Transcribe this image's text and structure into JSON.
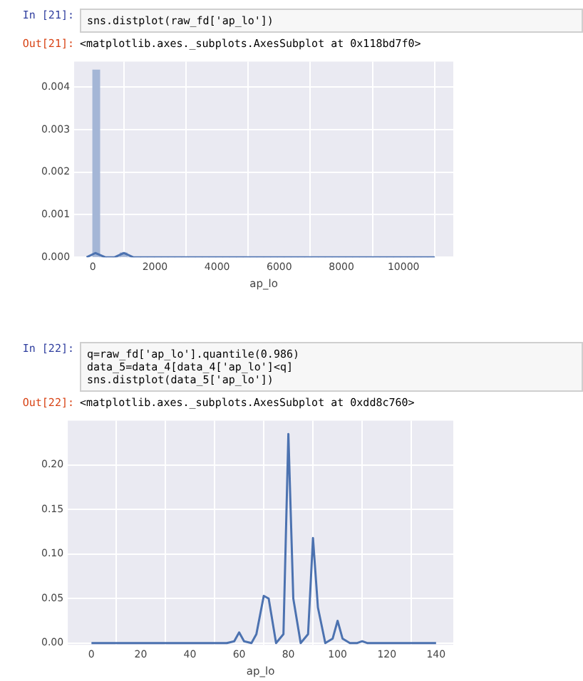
{
  "chart_data": [
    {
      "type": "histogram",
      "xlabel": "ap_lo",
      "annotations": [
        "In [21]:",
        "sns.distplot(raw_fd['ap_lo'])",
        "Out[21]:",
        "<matplotlib.axes._subplots.AxesSubplot at 0x118bd7f0>"
      ],
      "bins": [
        0,
        220,
        440,
        660,
        880,
        1100,
        1320,
        1540,
        1760,
        1980,
        2200,
        2420,
        2640,
        2860,
        3080,
        3300,
        3520,
        3740,
        3960,
        4180,
        4400,
        4620,
        4840,
        5060,
        5280,
        5500,
        5720,
        5940,
        6160,
        6380,
        6600,
        6820,
        7040,
        7260,
        7480,
        7700,
        7920,
        8140,
        8360,
        8580,
        8800,
        9020,
        9240,
        9460,
        9680,
        9900,
        10120,
        10340,
        10560,
        10780,
        11000
      ],
      "values": [
        0.0044,
        0,
        0,
        0,
        0.0001,
        0,
        0,
        0,
        0,
        0,
        0,
        0,
        0,
        0,
        0,
        0,
        0,
        0,
        0,
        0,
        0,
        0,
        0,
        0,
        0,
        0,
        0,
        0,
        0,
        0,
        0,
        0,
        0,
        0,
        0,
        0,
        0,
        0,
        0,
        0,
        0,
        0,
        0,
        0,
        0,
        0,
        0,
        0,
        0,
        0
      ],
      "color": "#a4b6d6",
      "series": [
        {
          "type": "line",
          "color": "#4c72b0",
          "x": [
            -200,
            80,
            400,
            700,
            1000,
            1300,
            2000,
            5000,
            8000,
            11000
          ],
          "values": [
            0,
            0.0001,
            0,
            0,
            0.0001,
            0,
            0,
            0,
            0,
            0
          ]
        }
      ],
      "xlim": [
        -600,
        11600
      ],
      "xticks": [
        0,
        2000,
        4000,
        6000,
        8000,
        10000
      ],
      "ylim": [
        0,
        0.0046
      ],
      "yticks": [
        {
          "value": 0,
          "label": "0.000"
        },
        {
          "value": 0.001,
          "label": "0.001"
        },
        {
          "value": 0.002,
          "label": "0.002"
        },
        {
          "value": 0.003,
          "label": "0.003"
        },
        {
          "value": 0.004,
          "label": "0.004"
        }
      ],
      "grid": true
    },
    {
      "type": "line",
      "xlabel": "ap_lo",
      "annotations": [
        "In [22]:",
        "q=raw_fd['ap_lo'].quantile(0.986)",
        "data_5=data_4[data_4['ap_lo']<q]",
        "sns.distplot(data_5['ap_lo'])",
        "Out[22]:",
        "<matplotlib.axes._subplots.AxesSubplot at 0xdd8c760>"
      ],
      "series": [
        {
          "color": "#4c72b0",
          "x": [
            0,
            40,
            55,
            58,
            60,
            62,
            65,
            67,
            70,
            72,
            75,
            78,
            80,
            82,
            85,
            88,
            90,
            92,
            95,
            98,
            100,
            102,
            105,
            108,
            110,
            112,
            120,
            140
          ],
          "values": [
            0,
            0,
            0,
            0.002,
            0.012,
            0.002,
            0,
            0.01,
            0.053,
            0.05,
            0,
            0.01,
            0.235,
            0.05,
            0,
            0.01,
            0.118,
            0.04,
            0,
            0.005,
            0.025,
            0.005,
            0,
            0,
            0.002,
            0,
            0,
            0
          ]
        }
      ],
      "xlim": [
        -9.6,
        147
      ],
      "xticks": [
        0,
        20,
        40,
        60,
        80,
        100,
        120,
        140
      ],
      "ylim": [
        -0.002,
        0.25
      ],
      "yticks": [
        {
          "value": 0,
          "label": "0.00"
        },
        {
          "value": 0.05,
          "label": "0.05"
        },
        {
          "value": 0.1,
          "label": "0.10"
        },
        {
          "value": 0.15,
          "label": "0.15"
        },
        {
          "value": 0.2,
          "label": "0.20"
        }
      ],
      "grid": true
    }
  ]
}
